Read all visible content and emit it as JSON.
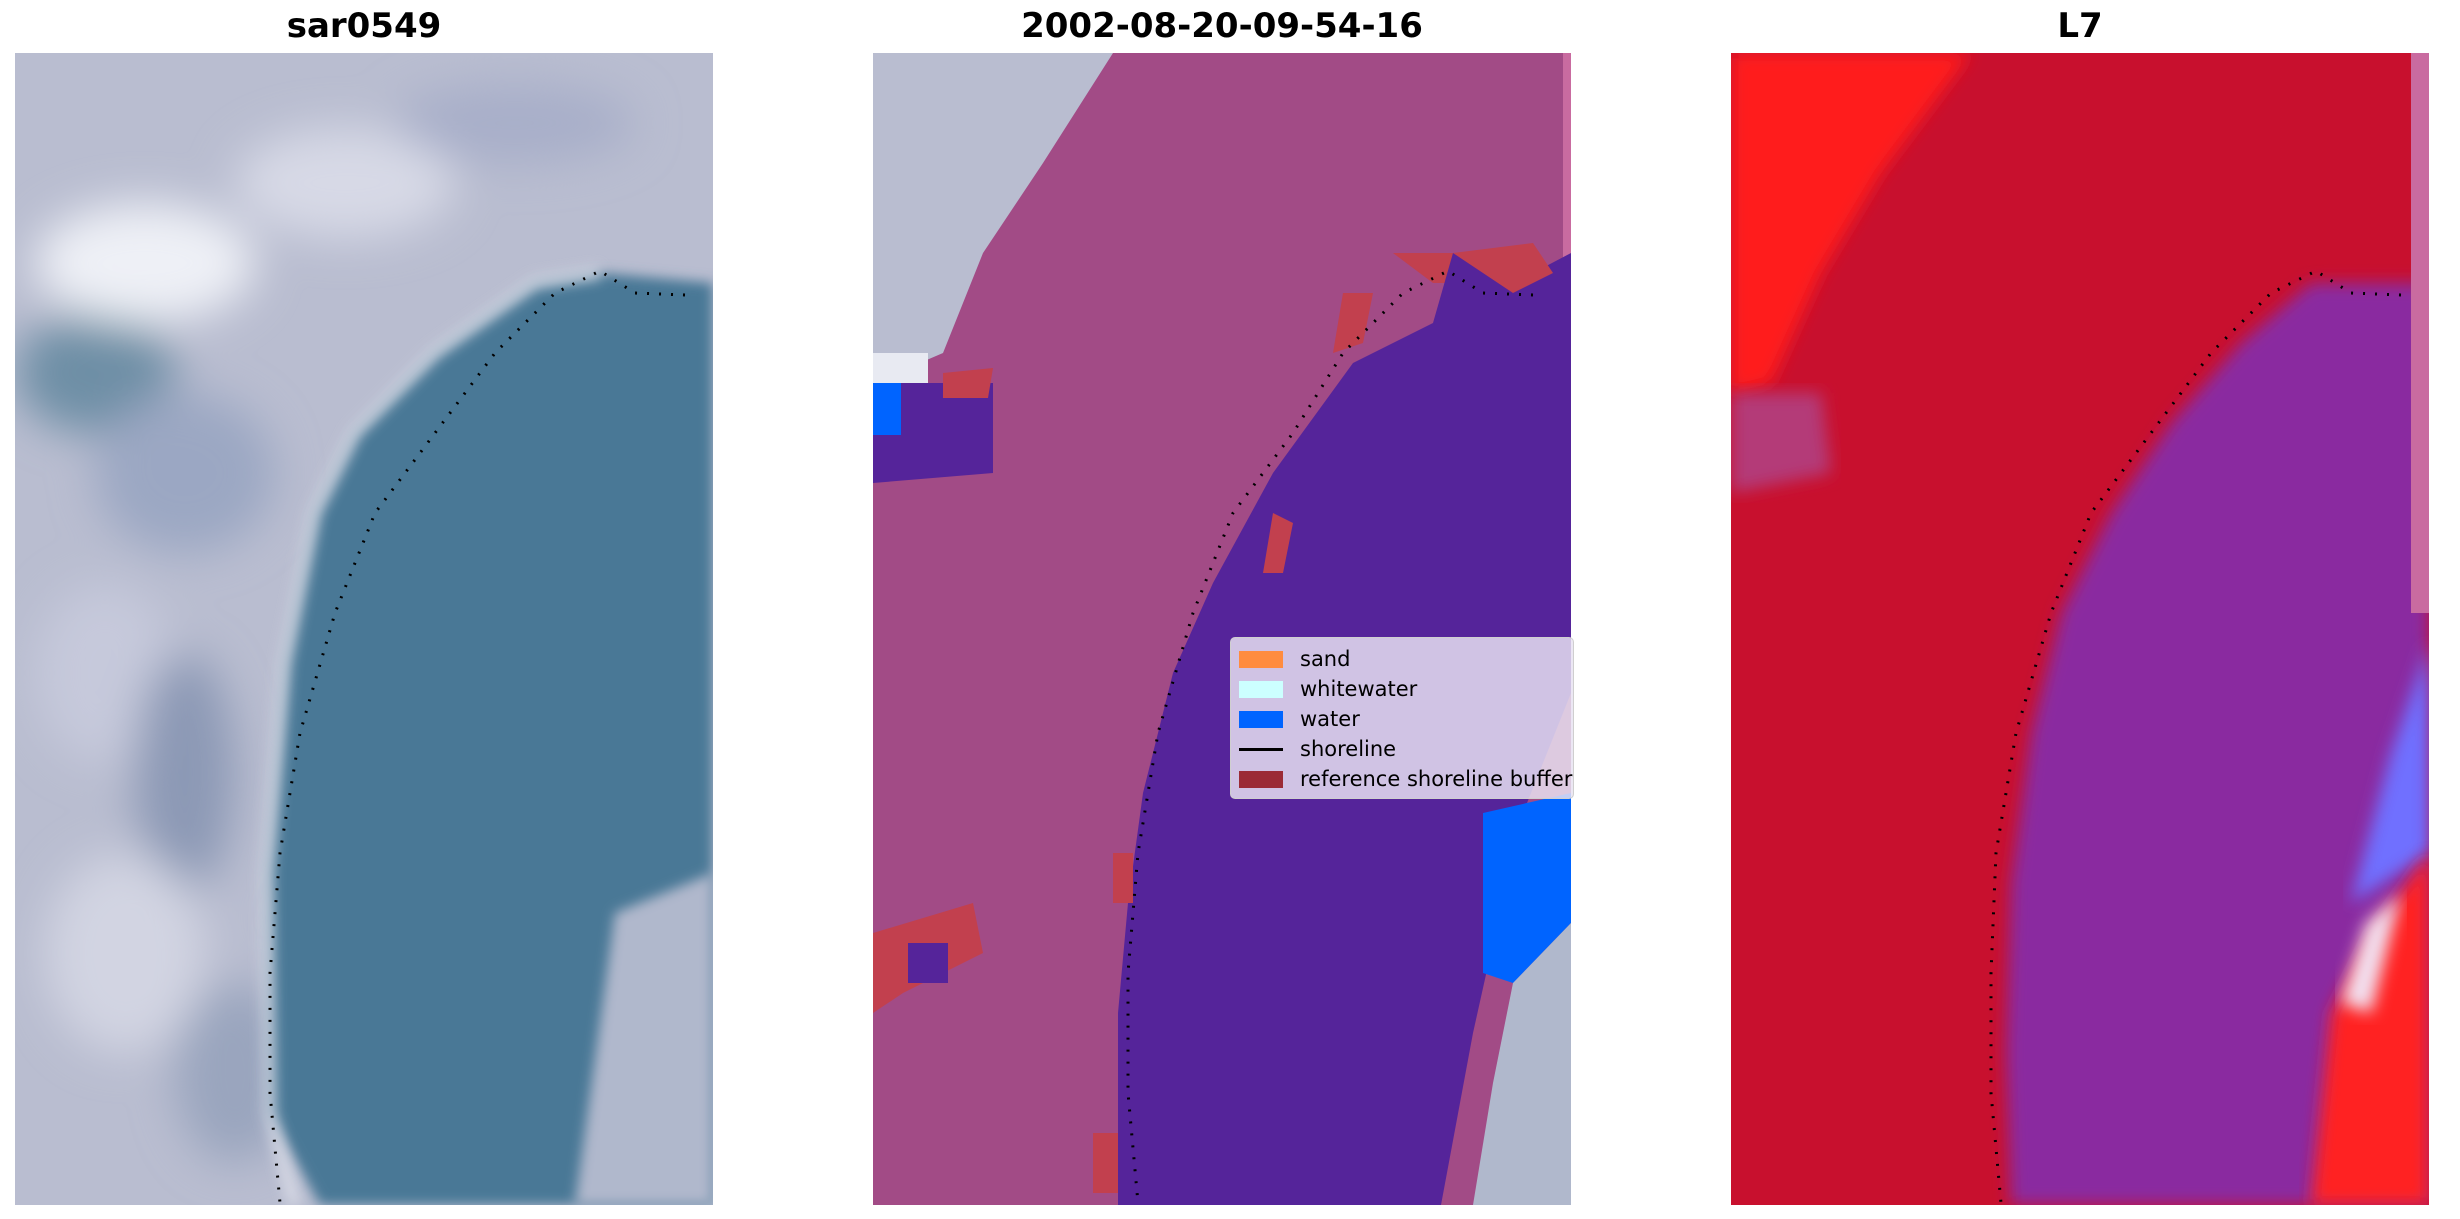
{
  "panels": [
    {
      "title": "sar0549"
    },
    {
      "title": "2002-08-20-09-54-16"
    },
    {
      "title": "L7"
    }
  ],
  "legend": {
    "items": [
      {
        "label": "sand",
        "color": "#ff8c3f",
        "kind": "patch"
      },
      {
        "label": "whitewater",
        "color": "#ccffff",
        "kind": "patch"
      },
      {
        "label": "water",
        "color": "#0064ff",
        "kind": "patch"
      },
      {
        "label": "shoreline",
        "color": "#000000",
        "kind": "line"
      },
      {
        "label": "reference shoreline buffer",
        "color": "#9b2b36",
        "kind": "patch"
      }
    ]
  },
  "colors": {
    "rgb_land": "#b7bccf",
    "rgb_water": "#4a7896",
    "classified_land": "#a24b86",
    "classified_water": "#55249a",
    "classified_buffer": "#c2404e",
    "classified_water_class": "#0064ff",
    "ndwi_land": "#c8102e",
    "ndwi_bright": "#ff1a1a",
    "ndwi_water": "#8a2aa0",
    "ndwi_blue": "#7070ff"
  }
}
